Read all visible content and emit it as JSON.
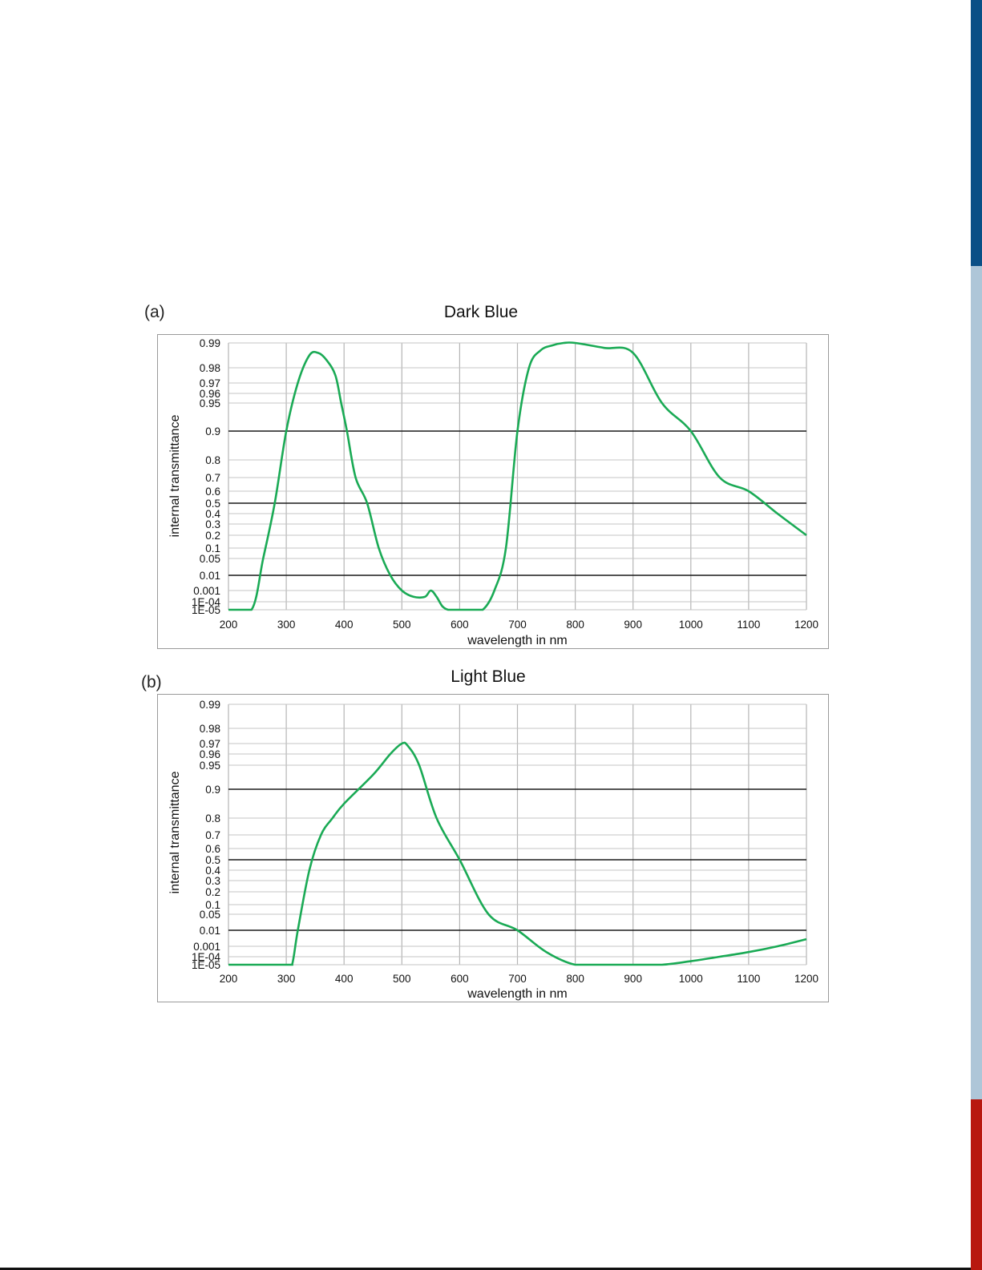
{
  "edge_colors": {
    "top": "#0a4f86",
    "middle": "#aec6d8",
    "bottom": "#b8180f"
  },
  "chart_data": [
    {
      "type": "line",
      "panel_label": "(a)",
      "title": "Dark Blue",
      "xlabel": "wavelength in nm",
      "ylabel": "internal transmittance",
      "xlim": [
        200,
        1200
      ],
      "x_ticks": [
        "200",
        "300",
        "400",
        "500",
        "600",
        "700",
        "800",
        "900",
        "1000",
        "1100",
        "1200"
      ],
      "y_scale": "custom transmittance scale (tick labels evenly treated as shown)",
      "y_ticks": [
        "1E-05",
        "1E-04",
        "0.001",
        "0.01",
        "0.05",
        "0.1",
        "0.2",
        "0.3",
        "0.4",
        "0.5",
        "0.6",
        "0.7",
        "0.8",
        "0.9",
        "0.95",
        "0.96",
        "0.97",
        "0.98",
        "0.99"
      ],
      "major_gridlines": [
        "0.01",
        "0.5",
        "0.9"
      ],
      "grid": true,
      "line_color": "#1aaa55",
      "series": [
        {
          "x": [
            200,
            240,
            260,
            280,
            300,
            320,
            340,
            355,
            370,
            385,
            395,
            405,
            420,
            440,
            460,
            480,
            500,
            520,
            540,
            550,
            560,
            570,
            580,
            590,
            600,
            620,
            640,
            660,
            680,
            700,
            720,
            740,
            760,
            780,
            800,
            850,
            900,
            950,
            1000,
            1050,
            1100,
            1150,
            1200
          ],
          "y": [
            1e-05,
            1e-05,
            0.05,
            0.5,
            0.9,
            0.97,
            0.985,
            0.986,
            0.983,
            0.975,
            0.95,
            0.9,
            0.7,
            0.5,
            0.1,
            0.01,
            0.001,
            0.0005,
            0.0005,
            0.001,
            0.0005,
            5e-05,
            1e-05,
            1e-05,
            1e-05,
            1e-05,
            1e-05,
            0.001,
            0.1,
            0.9,
            0.98,
            0.987,
            0.989,
            0.99,
            0.99,
            0.988,
            0.986,
            0.95,
            0.9,
            0.7,
            0.6,
            0.4,
            0.2
          ]
        }
      ]
    },
    {
      "type": "line",
      "panel_label": "(b)",
      "title": "Light Blue",
      "xlabel": "wavelength in nm",
      "ylabel": "internal transmittance",
      "xlim": [
        200,
        1200
      ],
      "x_ticks": [
        "200",
        "300",
        "400",
        "500",
        "600",
        "700",
        "800",
        "900",
        "1000",
        "1100",
        "1200"
      ],
      "y_scale": "custom transmittance scale (tick labels evenly treated as shown)",
      "y_ticks": [
        "1E-05",
        "1E-04",
        "0.001",
        "0.01",
        "0.05",
        "0.1",
        "0.2",
        "0.3",
        "0.4",
        "0.5",
        "0.6",
        "0.7",
        "0.8",
        "0.9",
        "0.95",
        "0.96",
        "0.97",
        "0.98",
        "0.99"
      ],
      "major_gridlines": [
        "0.01",
        "0.5",
        "0.9"
      ],
      "grid": true,
      "line_color": "#1aaa55",
      "series": [
        {
          "x": [
            200,
            300,
            310,
            320,
            340,
            360,
            380,
            400,
            450,
            480,
            500,
            510,
            530,
            560,
            600,
            650,
            700,
            750,
            800,
            850,
            900,
            950,
            1000,
            1050,
            1100,
            1150,
            1200
          ],
          "y": [
            1e-05,
            1e-05,
            1e-05,
            0.01,
            0.4,
            0.7,
            0.8,
            0.85,
            0.93,
            0.96,
            0.97,
            0.968,
            0.95,
            0.8,
            0.5,
            0.05,
            0.01,
            0.0005,
            1e-05,
            1e-05,
            1e-05,
            1e-05,
            5e-05,
            0.0001,
            0.0005,
            0.001,
            0.005
          ]
        }
      ]
    }
  ]
}
